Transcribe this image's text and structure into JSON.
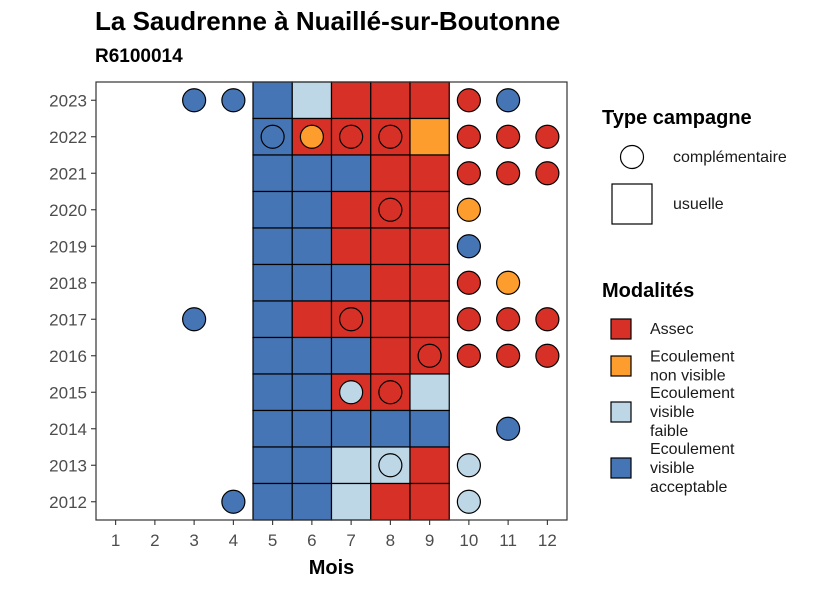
{
  "title": "La Saudrenne à Nuaillé-sur-Boutonne",
  "subtitle": "R6100014",
  "chart_data": {
    "type": "heatmap",
    "xlabel": "Mois",
    "ylabel": "",
    "x_ticks": [
      1,
      2,
      3,
      4,
      5,
      6,
      7,
      8,
      9,
      10,
      11,
      12
    ],
    "y_ticks": [
      2012,
      2013,
      2014,
      2015,
      2016,
      2017,
      2018,
      2019,
      2020,
      2021,
      2022,
      2023
    ],
    "xlim": [
      0.5,
      12.5
    ],
    "ylim": [
      2011.5,
      2023.5
    ],
    "colors": {
      "Assec": "#d73027",
      "Ecoulement non visible": "#fc9d2d",
      "Ecoulement visible faible": "#bdd7e7",
      "Ecoulement visible acceptable": "#4575b4"
    },
    "legend_campagne": {
      "title": "Type campagne",
      "entries": [
        {
          "label": "complémentaire",
          "shape": "circle"
        },
        {
          "label": "usuelle",
          "shape": "square"
        }
      ]
    },
    "legend_modalites": {
      "title": "Modalités",
      "entries": [
        {
          "key": "Assec",
          "lines": [
            "Assec"
          ]
        },
        {
          "key": "Ecoulement non visible",
          "lines": [
            "Ecoulement",
            "non visible"
          ]
        },
        {
          "key": "Ecoulement visible faible",
          "lines": [
            "Ecoulement",
            "visible",
            "faible"
          ]
        },
        {
          "key": "Ecoulement visible acceptable",
          "lines": [
            "Ecoulement",
            "visible",
            "acceptable"
          ]
        }
      ]
    },
    "usuelle": [
      {
        "year": 2023,
        "month": 5,
        "modalite": "Ecoulement visible acceptable"
      },
      {
        "year": 2023,
        "month": 6,
        "modalite": "Ecoulement visible faible"
      },
      {
        "year": 2023,
        "month": 7,
        "modalite": "Assec"
      },
      {
        "year": 2023,
        "month": 8,
        "modalite": "Assec"
      },
      {
        "year": 2023,
        "month": 9,
        "modalite": "Assec"
      },
      {
        "year": 2022,
        "month": 5,
        "modalite": "Ecoulement visible acceptable"
      },
      {
        "year": 2022,
        "month": 6,
        "modalite": "Assec"
      },
      {
        "year": 2022,
        "month": 7,
        "modalite": "Assec"
      },
      {
        "year": 2022,
        "month": 8,
        "modalite": "Assec"
      },
      {
        "year": 2022,
        "month": 9,
        "modalite": "Ecoulement non visible"
      },
      {
        "year": 2021,
        "month": 5,
        "modalite": "Ecoulement visible acceptable"
      },
      {
        "year": 2021,
        "month": 6,
        "modalite": "Ecoulement visible acceptable"
      },
      {
        "year": 2021,
        "month": 7,
        "modalite": "Ecoulement visible acceptable"
      },
      {
        "year": 2021,
        "month": 8,
        "modalite": "Assec"
      },
      {
        "year": 2021,
        "month": 9,
        "modalite": "Assec"
      },
      {
        "year": 2020,
        "month": 5,
        "modalite": "Ecoulement visible acceptable"
      },
      {
        "year": 2020,
        "month": 6,
        "modalite": "Ecoulement visible acceptable"
      },
      {
        "year": 2020,
        "month": 7,
        "modalite": "Assec"
      },
      {
        "year": 2020,
        "month": 8,
        "modalite": "Assec"
      },
      {
        "year": 2020,
        "month": 9,
        "modalite": "Assec"
      },
      {
        "year": 2019,
        "month": 5,
        "modalite": "Ecoulement visible acceptable"
      },
      {
        "year": 2019,
        "month": 6,
        "modalite": "Ecoulement visible acceptable"
      },
      {
        "year": 2019,
        "month": 7,
        "modalite": "Assec"
      },
      {
        "year": 2019,
        "month": 8,
        "modalite": "Assec"
      },
      {
        "year": 2019,
        "month": 9,
        "modalite": "Assec"
      },
      {
        "year": 2018,
        "month": 5,
        "modalite": "Ecoulement visible acceptable"
      },
      {
        "year": 2018,
        "month": 6,
        "modalite": "Ecoulement visible acceptable"
      },
      {
        "year": 2018,
        "month": 7,
        "modalite": "Ecoulement visible acceptable"
      },
      {
        "year": 2018,
        "month": 8,
        "modalite": "Assec"
      },
      {
        "year": 2018,
        "month": 9,
        "modalite": "Assec"
      },
      {
        "year": 2017,
        "month": 5,
        "modalite": "Ecoulement visible acceptable"
      },
      {
        "year": 2017,
        "month": 6,
        "modalite": "Assec"
      },
      {
        "year": 2017,
        "month": 7,
        "modalite": "Assec"
      },
      {
        "year": 2017,
        "month": 8,
        "modalite": "Assec"
      },
      {
        "year": 2017,
        "month": 9,
        "modalite": "Assec"
      },
      {
        "year": 2016,
        "month": 5,
        "modalite": "Ecoulement visible acceptable"
      },
      {
        "year": 2016,
        "month": 6,
        "modalite": "Ecoulement visible acceptable"
      },
      {
        "year": 2016,
        "month": 7,
        "modalite": "Ecoulement visible acceptable"
      },
      {
        "year": 2016,
        "month": 8,
        "modalite": "Assec"
      },
      {
        "year": 2016,
        "month": 9,
        "modalite": "Assec"
      },
      {
        "year": 2015,
        "month": 5,
        "modalite": "Ecoulement visible acceptable"
      },
      {
        "year": 2015,
        "month": 6,
        "modalite": "Ecoulement visible acceptable"
      },
      {
        "year": 2015,
        "month": 7,
        "modalite": "Assec"
      },
      {
        "year": 2015,
        "month": 8,
        "modalite": "Assec"
      },
      {
        "year": 2015,
        "month": 9,
        "modalite": "Ecoulement visible faible"
      },
      {
        "year": 2014,
        "month": 5,
        "modalite": "Ecoulement visible acceptable"
      },
      {
        "year": 2014,
        "month": 6,
        "modalite": "Ecoulement visible acceptable"
      },
      {
        "year": 2014,
        "month": 7,
        "modalite": "Ecoulement visible acceptable"
      },
      {
        "year": 2014,
        "month": 8,
        "modalite": "Ecoulement visible acceptable"
      },
      {
        "year": 2014,
        "month": 9,
        "modalite": "Ecoulement visible acceptable"
      },
      {
        "year": 2013,
        "month": 5,
        "modalite": "Ecoulement visible acceptable"
      },
      {
        "year": 2013,
        "month": 6,
        "modalite": "Ecoulement visible acceptable"
      },
      {
        "year": 2013,
        "month": 7,
        "modalite": "Ecoulement visible faible"
      },
      {
        "year": 2013,
        "month": 8,
        "modalite": "Ecoulement visible faible"
      },
      {
        "year": 2013,
        "month": 9,
        "modalite": "Assec"
      },
      {
        "year": 2012,
        "month": 5,
        "modalite": "Ecoulement visible acceptable"
      },
      {
        "year": 2012,
        "month": 6,
        "modalite": "Ecoulement visible acceptable"
      },
      {
        "year": 2012,
        "month": 7,
        "modalite": "Ecoulement visible faible"
      },
      {
        "year": 2012,
        "month": 8,
        "modalite": "Assec"
      },
      {
        "year": 2012,
        "month": 9,
        "modalite": "Assec"
      }
    ],
    "complementaire": [
      {
        "year": 2023,
        "month": 3,
        "modalite": "Ecoulement visible acceptable"
      },
      {
        "year": 2023,
        "month": 4,
        "modalite": "Ecoulement visible acceptable"
      },
      {
        "year": 2023,
        "month": 10,
        "modalite": "Assec"
      },
      {
        "year": 2023,
        "month": 11,
        "modalite": "Ecoulement visible acceptable"
      },
      {
        "year": 2022,
        "month": 5,
        "modalite": "Ecoulement visible acceptable"
      },
      {
        "year": 2022,
        "month": 6,
        "modalite": "Ecoulement non visible"
      },
      {
        "year": 2022,
        "month": 7,
        "modalite": "Assec"
      },
      {
        "year": 2022,
        "month": 8,
        "modalite": "Assec"
      },
      {
        "year": 2022,
        "month": 10,
        "modalite": "Assec"
      },
      {
        "year": 2022,
        "month": 11,
        "modalite": "Assec"
      },
      {
        "year": 2022,
        "month": 12,
        "modalite": "Assec"
      },
      {
        "year": 2021,
        "month": 10,
        "modalite": "Assec"
      },
      {
        "year": 2021,
        "month": 11,
        "modalite": "Assec"
      },
      {
        "year": 2021,
        "month": 12,
        "modalite": "Assec"
      },
      {
        "year": 2020,
        "month": 8,
        "modalite": "Assec"
      },
      {
        "year": 2020,
        "month": 10,
        "modalite": "Ecoulement non visible"
      },
      {
        "year": 2019,
        "month": 10,
        "modalite": "Ecoulement visible acceptable"
      },
      {
        "year": 2018,
        "month": 10,
        "modalite": "Assec"
      },
      {
        "year": 2018,
        "month": 11,
        "modalite": "Ecoulement non visible"
      },
      {
        "year": 2017,
        "month": 3,
        "modalite": "Ecoulement visible acceptable"
      },
      {
        "year": 2017,
        "month": 7,
        "modalite": "Assec"
      },
      {
        "year": 2017,
        "month": 10,
        "modalite": "Assec"
      },
      {
        "year": 2017,
        "month": 11,
        "modalite": "Assec"
      },
      {
        "year": 2017,
        "month": 12,
        "modalite": "Assec"
      },
      {
        "year": 2016,
        "month": 9,
        "modalite": "Assec"
      },
      {
        "year": 2016,
        "month": 10,
        "modalite": "Assec"
      },
      {
        "year": 2016,
        "month": 11,
        "modalite": "Assec"
      },
      {
        "year": 2016,
        "month": 12,
        "modalite": "Assec"
      },
      {
        "year": 2015,
        "month": 7,
        "modalite": "Ecoulement visible faible"
      },
      {
        "year": 2015,
        "month": 8,
        "modalite": "Assec"
      },
      {
        "year": 2014,
        "month": 11,
        "modalite": "Ecoulement visible acceptable"
      },
      {
        "year": 2013,
        "month": 8,
        "modalite": "Ecoulement visible faible"
      },
      {
        "year": 2013,
        "month": 10,
        "modalite": "Ecoulement visible faible"
      },
      {
        "year": 2012,
        "month": 4,
        "modalite": "Ecoulement visible acceptable"
      },
      {
        "year": 2012,
        "month": 10,
        "modalite": "Ecoulement visible faible"
      }
    ]
  }
}
